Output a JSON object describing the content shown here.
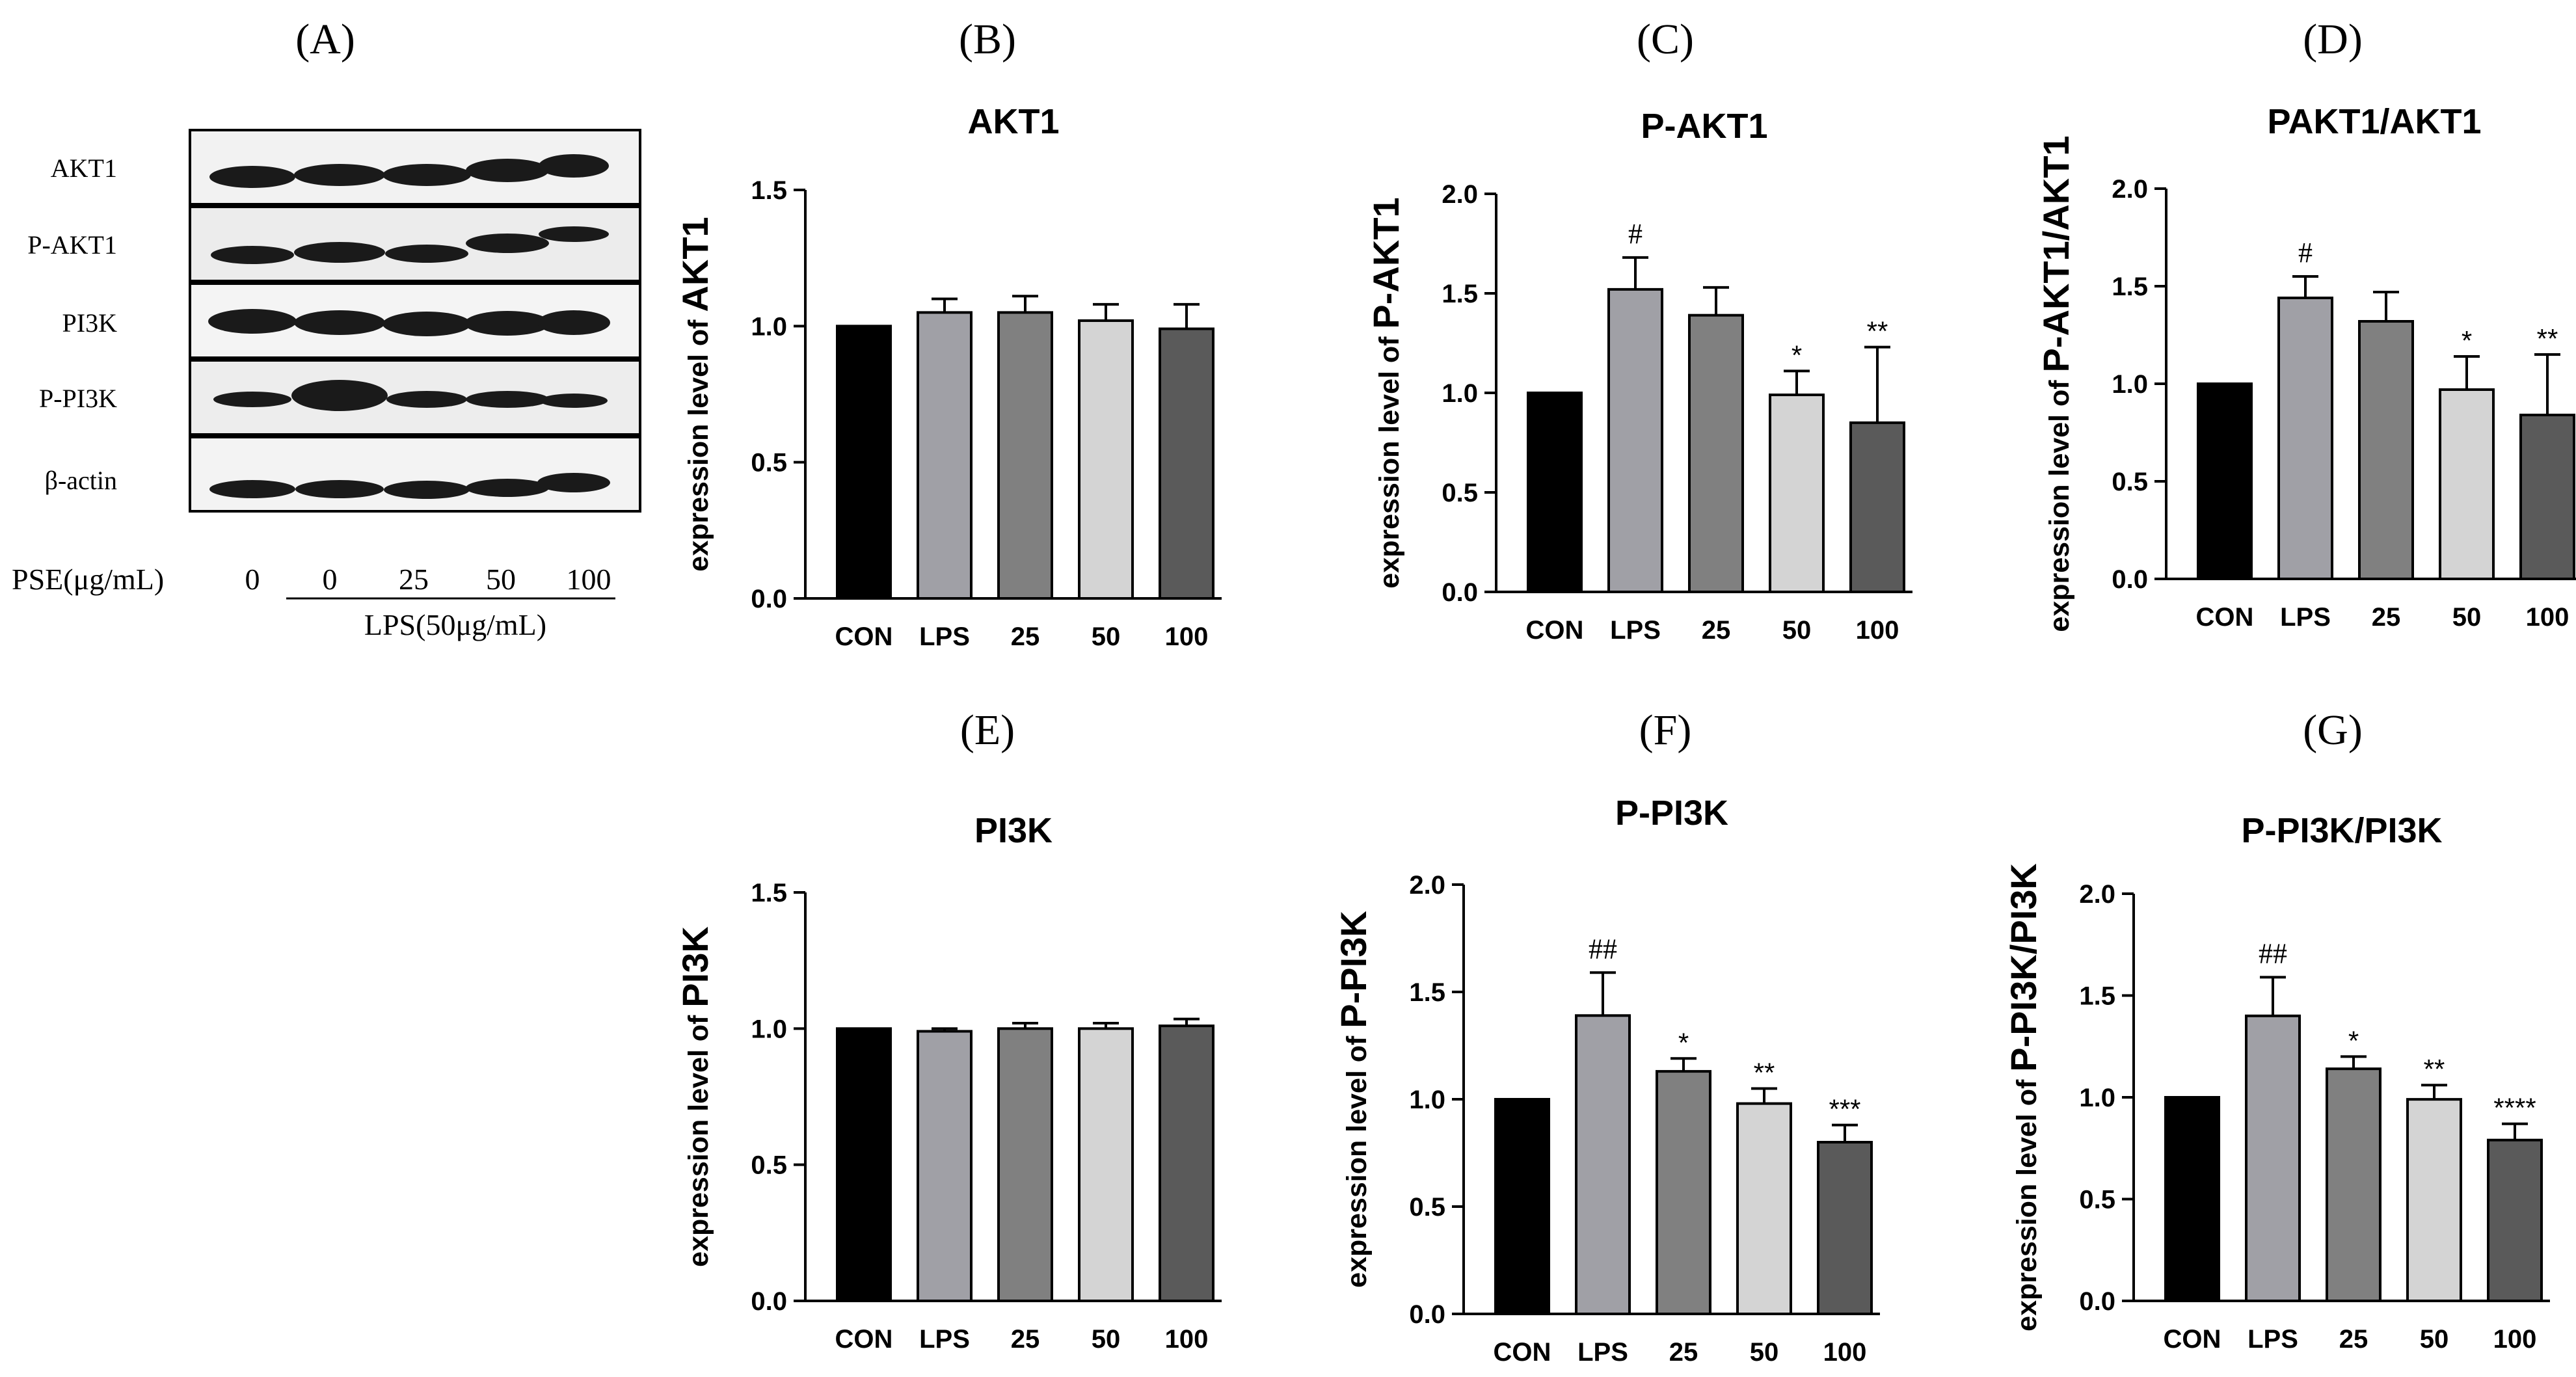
{
  "blot": {
    "letter": "(A)",
    "rows": [
      "AKT1",
      "P-AKT1",
      "PI3K",
      "P-PI3K",
      "β-actin"
    ],
    "pse_label": "PSE(μg/mL)",
    "pse_doses": [
      "0",
      "0",
      "25",
      "50",
      "100"
    ],
    "lps_label": "LPS(50μg/mL)"
  },
  "colors": {
    "CON": "#000000",
    "LPS": "#a0a0a6",
    "25": "#808080",
    "50": "#d4d4d4",
    "100": "#5a5a5a"
  },
  "chart_data": [
    {
      "id": "B",
      "letter": "(B)",
      "type": "bar",
      "title": "AKT1",
      "ylabel_prefix": "expression level of ",
      "ylabel_target": "AKT1",
      "categories": [
        "CON",
        "LPS",
        "25",
        "50",
        "100"
      ],
      "values": [
        1.0,
        1.05,
        1.05,
        1.02,
        0.99
      ],
      "errors": [
        0,
        0.05,
        0.06,
        0.06,
        0.09
      ],
      "annotations": [
        "",
        "",
        "",
        "",
        ""
      ],
      "ylim": [
        0,
        1.5
      ],
      "yticks": [
        "0.0",
        "0.5",
        "1.0",
        "1.5"
      ]
    },
    {
      "id": "C",
      "letter": "(C)",
      "type": "bar",
      "title": "P-AKT1",
      "ylabel_prefix": "expression level of ",
      "ylabel_target": "P-AKT1",
      "categories": [
        "CON",
        "LPS",
        "25",
        "50",
        "100"
      ],
      "values": [
        1.0,
        1.52,
        1.39,
        0.99,
        0.85
      ],
      "errors": [
        0,
        0.16,
        0.14,
        0.12,
        0.38
      ],
      "annotations": [
        "",
        "#",
        "",
        "*",
        "**"
      ],
      "ylim": [
        0,
        2.0
      ],
      "yticks": [
        "0.0",
        "0.5",
        "1.0",
        "1.5",
        "2.0"
      ]
    },
    {
      "id": "D",
      "letter": "(D)",
      "type": "bar",
      "title": "PAKT1/AKT1",
      "ylabel_prefix": "expression level of ",
      "ylabel_target": "P-AKT1/AKT1",
      "categories": [
        "CON",
        "LPS",
        "25",
        "50",
        "100"
      ],
      "values": [
        1.0,
        1.44,
        1.32,
        0.97,
        0.84
      ],
      "errors": [
        0,
        0.11,
        0.15,
        0.17,
        0.31
      ],
      "annotations": [
        "",
        "#",
        "",
        "*",
        "**"
      ],
      "ylim": [
        0,
        2.0
      ],
      "yticks": [
        "0.0",
        "0.5",
        "1.0",
        "1.5",
        "2.0"
      ]
    },
    {
      "id": "E",
      "letter": "(E)",
      "type": "bar",
      "title": "PI3K",
      "ylabel_prefix": "expression level of ",
      "ylabel_target": "PI3K",
      "categories": [
        "CON",
        "LPS",
        "25",
        "50",
        "100"
      ],
      "values": [
        1.0,
        0.99,
        1.0,
        1.0,
        1.01
      ],
      "errors": [
        0,
        0.01,
        0.02,
        0.02,
        0.025
      ],
      "annotations": [
        "",
        "",
        "",
        "",
        ""
      ],
      "ylim": [
        0,
        1.5
      ],
      "yticks": [
        "0.0",
        "0.5",
        "1.0",
        "1.5"
      ]
    },
    {
      "id": "F",
      "letter": "(F)",
      "type": "bar",
      "title": "P-PI3K",
      "ylabel_prefix": "expression level of ",
      "ylabel_target": "P-PI3K",
      "categories": [
        "CON",
        "LPS",
        "25",
        "50",
        "100"
      ],
      "values": [
        1.0,
        1.39,
        1.13,
        0.98,
        0.8
      ],
      "errors": [
        0,
        0.2,
        0.06,
        0.07,
        0.08
      ],
      "annotations": [
        "",
        "##",
        "*",
        "**",
        "***"
      ],
      "ylim": [
        0,
        2.0
      ],
      "yticks": [
        "0.0",
        "0.5",
        "1.0",
        "1.5",
        "2.0"
      ]
    },
    {
      "id": "G",
      "letter": "(G)",
      "type": "bar",
      "title": "P-PI3K/PI3K",
      "ylabel_prefix": "expression level of ",
      "ylabel_target": "P-PI3K/PI3K",
      "categories": [
        "CON",
        "LPS",
        "25",
        "50",
        "100"
      ],
      "values": [
        1.0,
        1.4,
        1.14,
        0.99,
        0.79
      ],
      "errors": [
        0,
        0.19,
        0.06,
        0.07,
        0.08
      ],
      "annotations": [
        "",
        "##",
        "*",
        "**",
        "****"
      ],
      "ylim": [
        0,
        2.0
      ],
      "yticks": [
        "0.0",
        "0.5",
        "1.0",
        "1.5",
        "2.0"
      ]
    }
  ]
}
